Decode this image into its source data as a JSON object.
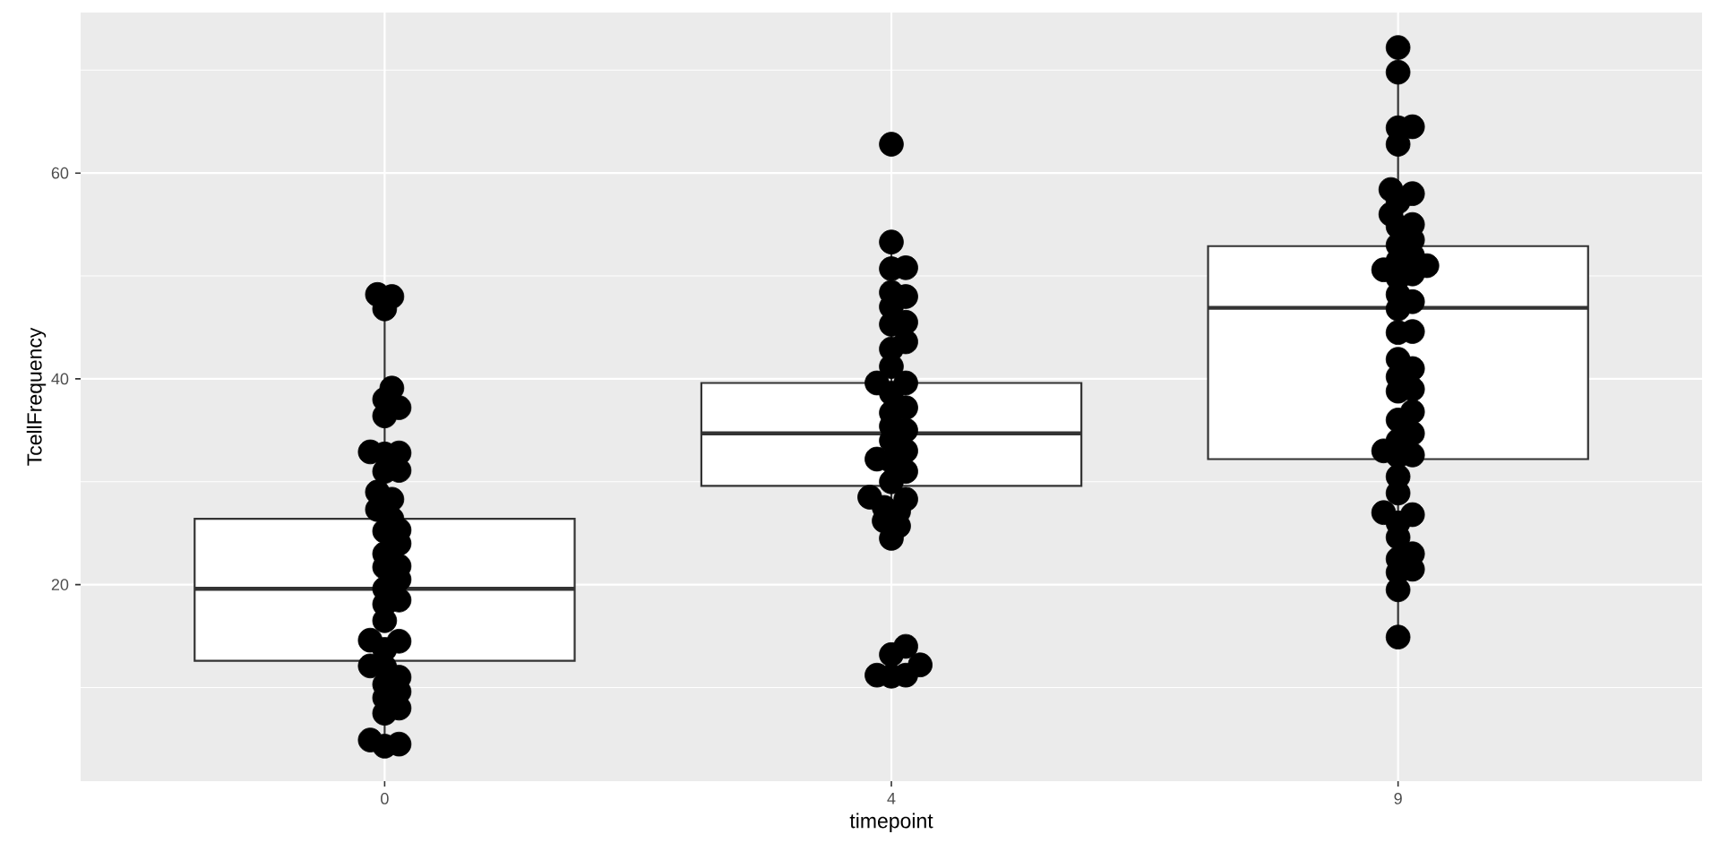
{
  "chart_data": {
    "type": "box",
    "xlabel": "timepoint",
    "ylabel": "TcellFrequency",
    "categories": [
      "0",
      "4",
      "9"
    ],
    "ylim": [
      0.9,
      75.6
    ],
    "yticks": [
      20,
      40,
      60
    ],
    "grid": true,
    "marker": "circle",
    "series": [
      {
        "type": "box",
        "color": "#333333",
        "boxes": [
          {
            "low": 4.3,
            "q1": 12.6,
            "median": 19.6,
            "q3": 26.4,
            "high": 48.1
          },
          {
            "low": 24.5,
            "q1": 29.6,
            "median": 34.7,
            "q3": 39.6,
            "high": 53.3
          },
          {
            "low": 14.9,
            "q1": 32.2,
            "median": 46.9,
            "q3": 52.9,
            "high": 72.2
          }
        ]
      },
      {
        "type": "scatter",
        "color": "#000000",
        "x": [
          "0",
          "0",
          "0",
          "0",
          "0",
          "0",
          "0",
          "0",
          "0",
          "0",
          "0",
          "0",
          "0",
          "0",
          "0",
          "0",
          "0",
          "0",
          "0",
          "0",
          "0",
          "0",
          "0",
          "0",
          "0",
          "0",
          "0",
          "0",
          "0",
          "0",
          "0",
          "0",
          "0",
          "0",
          "0",
          "0",
          "0",
          "0",
          "0",
          "0",
          "0",
          "4",
          "4",
          "4",
          "4",
          "4",
          "4",
          "4",
          "4",
          "4",
          "4",
          "4",
          "4",
          "4",
          "4",
          "4",
          "4",
          "4",
          "4",
          "4",
          "4",
          "4",
          "4",
          "4",
          "4",
          "4",
          "4",
          "4",
          "4",
          "4",
          "4",
          "4",
          "4",
          "4",
          "4",
          "4",
          "4",
          "4",
          "4",
          "9",
          "9",
          "9",
          "9",
          "9",
          "9",
          "9",
          "9",
          "9",
          "9",
          "9",
          "9",
          "9",
          "9",
          "9",
          "9",
          "9",
          "9",
          "9",
          "9",
          "9",
          "9",
          "9",
          "9",
          "9",
          "9",
          "9",
          "9",
          "9",
          "9",
          "9",
          "9",
          "9",
          "9",
          "9",
          "9",
          "9",
          "9",
          "9",
          "9",
          "9",
          "9",
          "9",
          "9",
          "9",
          "9",
          "9",
          "9"
        ],
        "values": [
          48.0,
          48.2,
          46.8,
          39.1,
          38.0,
          37.2,
          36.4,
          32.8,
          32.7,
          32.9,
          31.0,
          31.1,
          29.0,
          28.3,
          27.3,
          26.4,
          25.3,
          25.2,
          24.0,
          23.0,
          21.8,
          21.7,
          20.5,
          19.6,
          18.5,
          18.1,
          16.5,
          14.6,
          14.5,
          13.7,
          12.0,
          12.1,
          11.0,
          10.3,
          9.6,
          9.0,
          8.0,
          7.5,
          4.9,
          4.3,
          4.5,
          62.8,
          53.3,
          50.7,
          50.8,
          48.4,
          48.0,
          47.0,
          45.5,
          45.3,
          43.6,
          42.9,
          41.2,
          39.6,
          39.6,
          38.6,
          37.2,
          36.7,
          35.4,
          35.0,
          34.0,
          33.0,
          32.2,
          32.0,
          31.0,
          30.0,
          28.5,
          28.3,
          27.5,
          27.1,
          26.2,
          25.7,
          24.5,
          14.0,
          13.2,
          12.2,
          11.2,
          11.2,
          11.1,
          72.2,
          69.8,
          64.5,
          64.4,
          62.8,
          58.4,
          58.0,
          57.2,
          56.0,
          55.0,
          54.8,
          53.5,
          53.0,
          52.0,
          51.5,
          51.0,
          50.6,
          50.2,
          49.8,
          48.2,
          47.5,
          46.8,
          44.6,
          44.5,
          41.9,
          41.0,
          40.2,
          39.0,
          38.8,
          36.8,
          36.0,
          34.7,
          34.0,
          33.0,
          32.6,
          32.5,
          30.5,
          28.9,
          27.0,
          26.8,
          26.0,
          24.6,
          23.0,
          22.5,
          21.5,
          21.2,
          19.5,
          14.9
        ]
      }
    ]
  }
}
